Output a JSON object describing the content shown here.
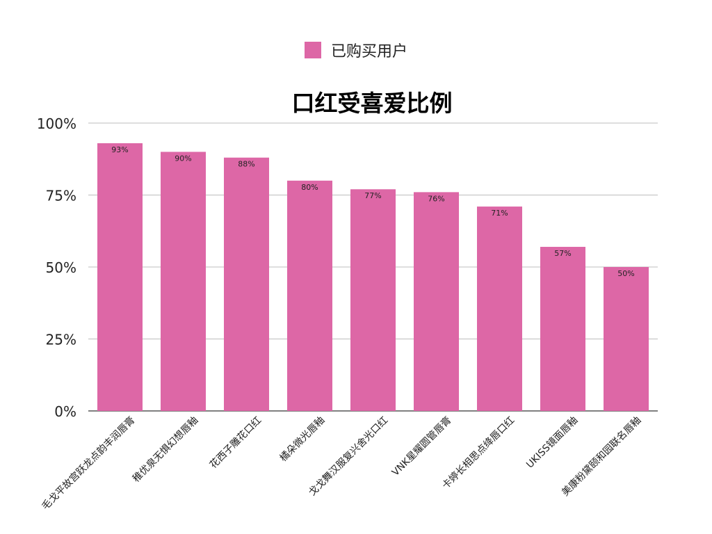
{
  "chart_data": {
    "type": "bar",
    "title": "口红受喜爱比例",
    "xlabel": "",
    "ylabel": "",
    "legend": {
      "position": "top-center"
    },
    "ylim": [
      0,
      100
    ],
    "yticks": [
      "0%",
      "25%",
      "50%",
      "75%",
      "100%"
    ],
    "grid": true,
    "categories": [
      "毛戈平故宫跃龙点韵丰润唇膏",
      "稚优泉无惧幻想唇釉",
      "花西子雕花口红",
      "橘朵微光唇釉",
      "戈戈舞汉服复兴舍光口红",
      "VNK星耀圆管唇膏",
      "卡婷长相思点绛唇口红",
      "UKISS镜面唇釉",
      "美康粉黛颐和园联名唇釉"
    ],
    "series": [
      {
        "name": "已购买用户",
        "color": "#dd67a6",
        "values": [
          93,
          90,
          88,
          80,
          77,
          76,
          71,
          57,
          50
        ],
        "labels": [
          "93%",
          "90%",
          "88%",
          "80%",
          "77%",
          "76%",
          "71%",
          "57%",
          "50%"
        ]
      }
    ]
  }
}
